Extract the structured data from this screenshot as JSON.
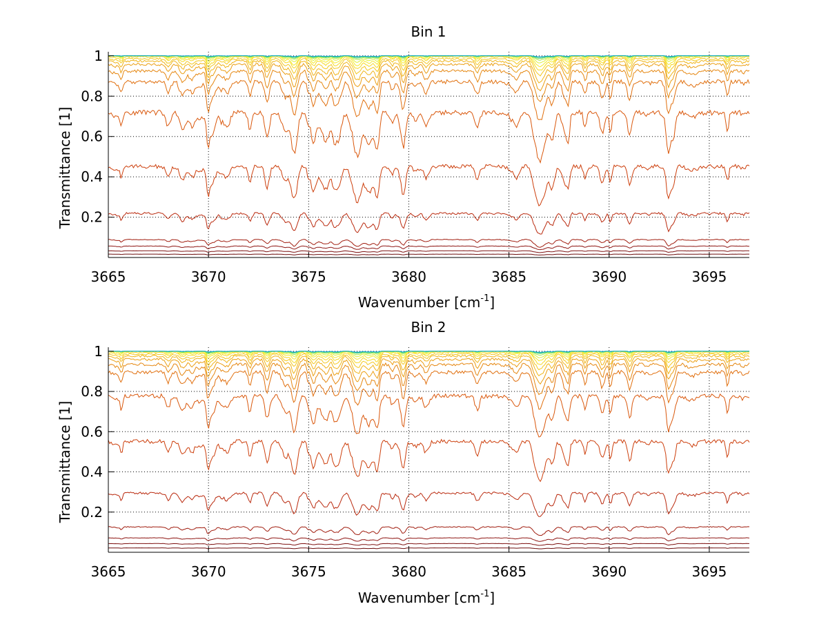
{
  "chart_data": [
    {
      "type": "line",
      "title": "Bin 1",
      "xlabel": "Wavenumber [cm",
      "xlabel_sup": "-1",
      "xlabel_end": "]",
      "ylabel": "Transmittance [1]",
      "xlim": [
        3665,
        3697
      ],
      "ylim": [
        0,
        1.02
      ],
      "xticks": [
        3665,
        3670,
        3675,
        3680,
        3685,
        3690,
        3695
      ],
      "yticks": [
        0.2,
        0.4,
        0.6,
        0.8,
        1
      ],
      "grid": true,
      "series_colors": [
        "#6b0a0a",
        "#7d1010",
        "#8e1512",
        "#a01c0e",
        "#b9280c",
        "#cc3d0a",
        "#d9560a",
        "#e06e0c",
        "#e5860f",
        "#eb9e12",
        "#f0b418",
        "#f4c81e",
        "#f7da25",
        "#f5ea2c",
        "#dff038",
        "#a8ea48",
        "#62d85e",
        "#2cc39a",
        "#13a8d2"
      ],
      "series_mean": [
        0.015,
        0.03,
        0.05,
        0.075,
        0.18,
        0.38,
        0.63,
        0.8,
        0.87,
        0.91,
        0.935,
        0.955,
        0.97,
        0.98,
        0.988,
        0.993,
        0.996,
        0.998,
        0.999
      ],
      "series_depth": [
        0.003,
        0.006,
        0.012,
        0.025,
        0.07,
        0.13,
        0.16,
        0.13,
        0.1,
        0.085,
        0.07,
        0.055,
        0.045,
        0.035,
        0.025,
        0.015,
        0.01,
        0.006,
        0.004
      ]
    },
    {
      "type": "line",
      "title": "Bin 2",
      "xlabel": "Wavenumber [cm",
      "xlabel_sup": "-1",
      "xlabel_end": "]",
      "ylabel": "Transmittance [1]",
      "xlim": [
        3665,
        3697
      ],
      "ylim": [
        0,
        1.02
      ],
      "xticks": [
        3665,
        3670,
        3675,
        3680,
        3685,
        3690,
        3695
      ],
      "yticks": [
        0.2,
        0.4,
        0.6,
        0.8,
        1
      ],
      "grid": true,
      "series_colors": [
        "#6b0a0a",
        "#7d1010",
        "#8e1512",
        "#a01c0e",
        "#b9280c",
        "#cc3d0a",
        "#d9560a",
        "#e06e0c",
        "#e5860f",
        "#eb9e12",
        "#f0b418",
        "#f4c81e",
        "#f7da25",
        "#f5ea2c",
        "#dff038",
        "#a8ea48",
        "#62d85e",
        "#2cc39a",
        "#13a8d2"
      ],
      "series_mean": [
        0.02,
        0.04,
        0.065,
        0.11,
        0.25,
        0.48,
        0.7,
        0.83,
        0.88,
        0.915,
        0.94,
        0.958,
        0.972,
        0.982,
        0.989,
        0.994,
        0.997,
        0.998,
        0.999
      ],
      "series_depth": [
        0.003,
        0.006,
        0.012,
        0.03,
        0.08,
        0.13,
        0.14,
        0.12,
        0.1,
        0.08,
        0.065,
        0.05,
        0.04,
        0.03,
        0.022,
        0.014,
        0.009,
        0.006,
        0.004
      ]
    }
  ]
}
